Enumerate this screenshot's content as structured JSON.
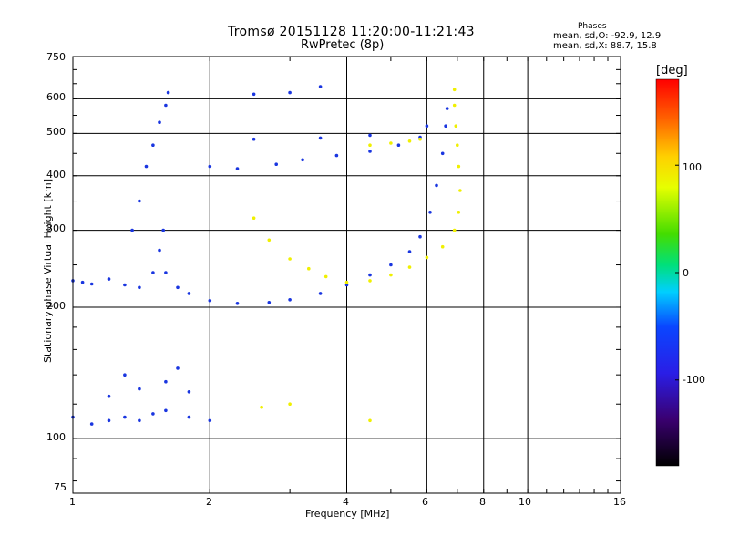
{
  "header": {
    "title": "Tromsø 20151128 11:20:00-11:21:43",
    "subtitle": "RwPretec (8p)",
    "stats_title": "Phases",
    "stats_o": "mean, sd,O: -92.9, 12.9",
    "stats_x": "mean, sd,X:  88.7, 15.8"
  },
  "colorbar": {
    "unit_label": "[deg]",
    "range": [
      -180,
      180
    ],
    "ticks": [
      "100",
      "0",
      "-100"
    ]
  },
  "chart_data": {
    "type": "scatter",
    "xlabel": "Frequency [MHz]",
    "ylabel": "Stationary phase Virtual Height [km]",
    "x_scale": "log",
    "y_scale": "log",
    "xlim": [
      1,
      16
    ],
    "ylim": [
      75,
      750
    ],
    "x_ticks": [
      "1",
      "2",
      "4",
      "6",
      "8",
      "10",
      "16"
    ],
    "y_ticks": [
      "75",
      "100",
      "200",
      "300",
      "400",
      "500",
      "600",
      "750"
    ],
    "grid": true,
    "series": [
      {
        "mode": "O",
        "phase_deg": -92.9,
        "color": "#1a36e0",
        "points": [
          [
            1.0,
            230
          ],
          [
            1.05,
            228
          ],
          [
            1.1,
            226
          ],
          [
            1.2,
            232
          ],
          [
            1.3,
            225
          ],
          [
            1.4,
            222
          ],
          [
            1.5,
            240
          ],
          [
            1.55,
            270
          ],
          [
            1.58,
            300
          ],
          [
            1.6,
            240
          ],
          [
            1.7,
            222
          ],
          [
            1.8,
            215
          ],
          [
            2.0,
            207
          ],
          [
            2.3,
            204
          ],
          [
            2.7,
            205
          ],
          [
            3.0,
            208
          ],
          [
            3.5,
            215
          ],
          [
            4.0,
            225
          ],
          [
            4.5,
            237
          ],
          [
            5.0,
            250
          ],
          [
            5.5,
            268
          ],
          [
            5.8,
            290
          ],
          [
            6.1,
            330
          ],
          [
            6.3,
            380
          ],
          [
            6.5,
            450
          ],
          [
            6.6,
            520
          ],
          [
            6.65,
            570
          ],
          [
            1.35,
            300
          ],
          [
            1.4,
            350
          ],
          [
            1.45,
            420
          ],
          [
            1.5,
            470
          ],
          [
            1.55,
            530
          ],
          [
            1.6,
            580
          ],
          [
            1.62,
            620
          ],
          [
            2.0,
            420
          ],
          [
            2.3,
            415
          ],
          [
            2.8,
            425
          ],
          [
            3.2,
            435
          ],
          [
            3.8,
            445
          ],
          [
            4.5,
            455
          ],
          [
            5.2,
            470
          ],
          [
            5.8,
            490
          ],
          [
            6.0,
            520
          ],
          [
            2.5,
            485
          ],
          [
            3.5,
            488
          ],
          [
            4.5,
            495
          ],
          [
            2.5,
            615
          ],
          [
            3.0,
            620
          ],
          [
            3.5,
            640
          ],
          [
            1.0,
            112
          ],
          [
            1.1,
            108
          ],
          [
            1.2,
            110
          ],
          [
            1.3,
            112
          ],
          [
            1.4,
            110
          ],
          [
            1.5,
            114
          ],
          [
            1.6,
            116
          ],
          [
            1.8,
            112
          ],
          [
            2.0,
            110
          ],
          [
            1.2,
            125
          ],
          [
            1.4,
            130
          ],
          [
            1.6,
            135
          ],
          [
            1.8,
            128
          ],
          [
            1.3,
            140
          ],
          [
            1.7,
            145
          ]
        ]
      },
      {
        "mode": "X",
        "phase_deg": 88.7,
        "color": "#f0f000",
        "points": [
          [
            2.5,
            320
          ],
          [
            2.7,
            285
          ],
          [
            3.0,
            258
          ],
          [
            3.3,
            245
          ],
          [
            3.6,
            235
          ],
          [
            4.0,
            228
          ],
          [
            4.5,
            230
          ],
          [
            5.0,
            237
          ],
          [
            5.5,
            247
          ],
          [
            6.0,
            260
          ],
          [
            6.5,
            275
          ],
          [
            6.9,
            300
          ],
          [
            7.05,
            330
          ],
          [
            7.1,
            370
          ],
          [
            7.05,
            420
          ],
          [
            7.0,
            470
          ],
          [
            6.95,
            520
          ],
          [
            6.9,
            580
          ],
          [
            6.9,
            630
          ],
          [
            4.5,
            470
          ],
          [
            5.0,
            475
          ],
          [
            5.5,
            480
          ],
          [
            5.8,
            485
          ],
          [
            2.6,
            118
          ],
          [
            3.0,
            120
          ],
          [
            4.5,
            110
          ]
        ]
      }
    ]
  }
}
